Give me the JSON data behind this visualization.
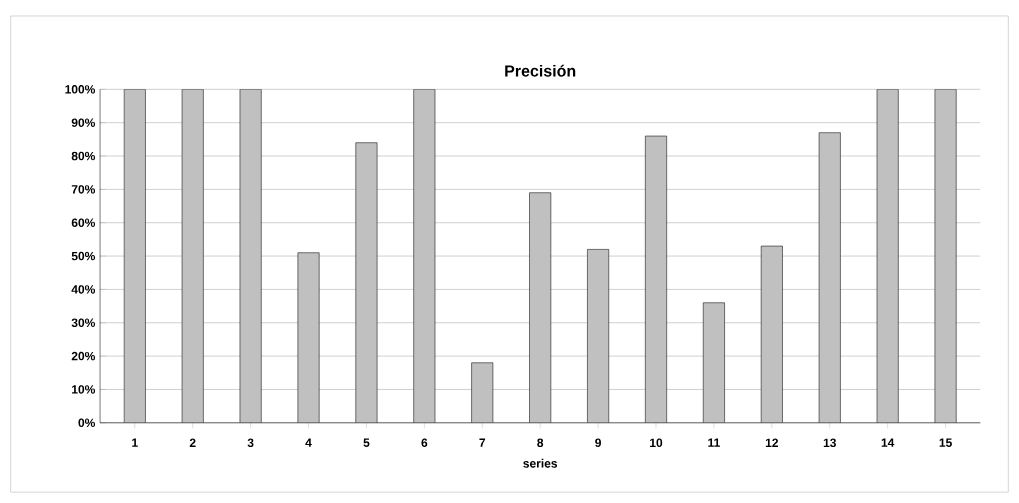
{
  "chart_data": {
    "type": "bar",
    "title": "Precisión",
    "xlabel": "series",
    "categories": [
      "1",
      "2",
      "3",
      "4",
      "5",
      "6",
      "7",
      "8",
      "9",
      "10",
      "11",
      "12",
      "13",
      "14",
      "15"
    ],
    "values": [
      100,
      100,
      100,
      51,
      84,
      100,
      18,
      69,
      52,
      86,
      36,
      53,
      87,
      100,
      100
    ],
    "color": "#c0c0c0",
    "ylim": [
      0,
      100
    ],
    "yticks": [
      {
        "value": 0,
        "label": "0%"
      },
      {
        "value": 10,
        "label": "10%"
      },
      {
        "value": 20,
        "label": "20%"
      },
      {
        "value": 30,
        "label": "30%"
      },
      {
        "value": 40,
        "label": "40%"
      },
      {
        "value": 50,
        "label": "50%"
      },
      {
        "value": 60,
        "label": "60%"
      },
      {
        "value": 70,
        "label": "70%"
      },
      {
        "value": 80,
        "label": "80%"
      },
      {
        "value": 90,
        "label": "90%"
      },
      {
        "value": 100,
        "label": "100%"
      }
    ],
    "grid": "y"
  }
}
